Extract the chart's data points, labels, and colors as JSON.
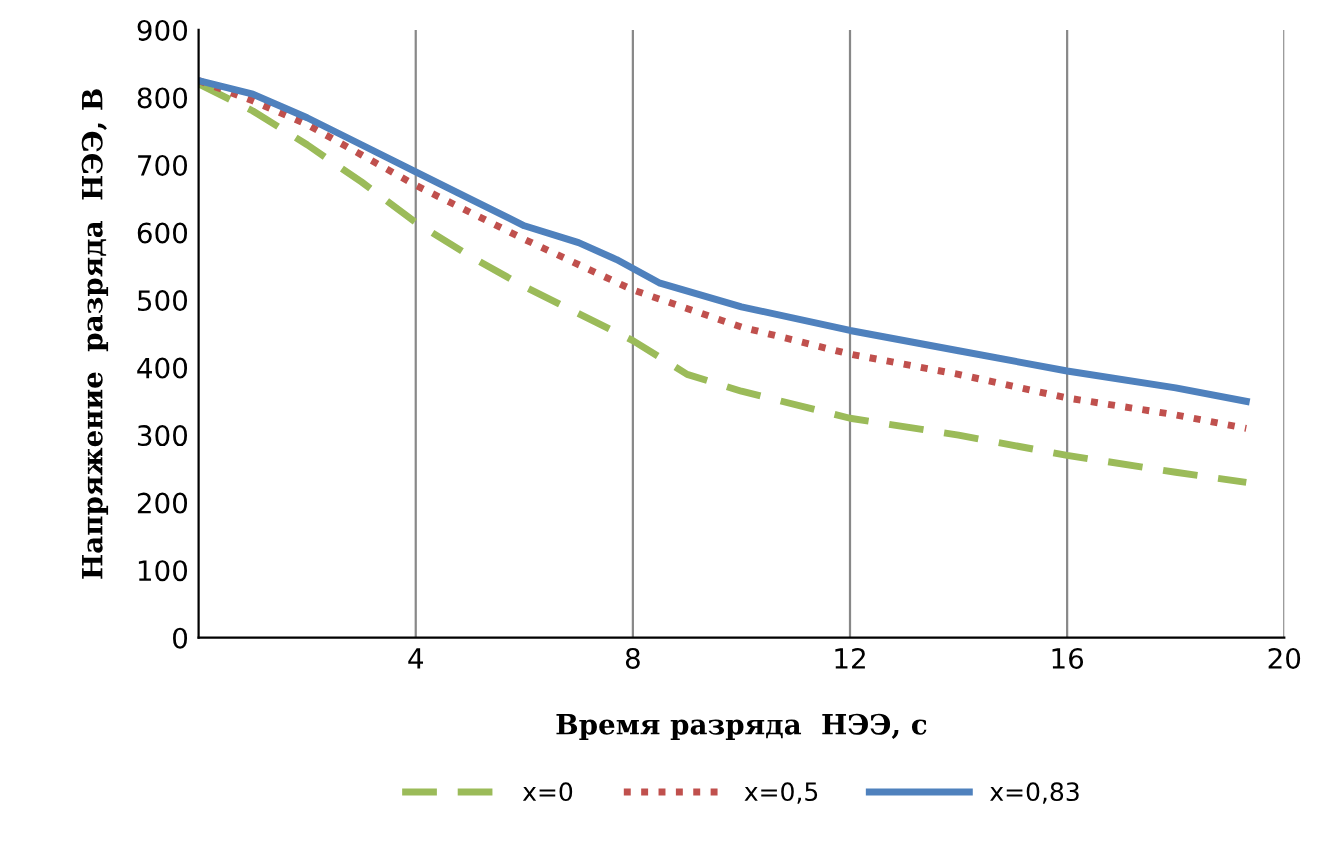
{
  "chart_data": {
    "type": "line",
    "xlabel": "Время разряда  НЭЭ, с",
    "ylabel": "Напряжение  разряда  НЭЭ, В",
    "xlim": [
      0,
      20
    ],
    "xticks": [
      4,
      8,
      12,
      16,
      20
    ],
    "ylim": [
      0,
      900
    ],
    "yticks": [
      0,
      100,
      200,
      300,
      400,
      500,
      600,
      700,
      800,
      900
    ],
    "grid": "x",
    "legend": "bottom",
    "marker": "none",
    "series": [
      {
        "name": "x=0",
        "color": "#9bbb59",
        "line_style": "dashed",
        "x": [
          0,
          1,
          2,
          3,
          4,
          5,
          6,
          7,
          8,
          9,
          10,
          12,
          14,
          16,
          18,
          19.3
        ],
        "values": [
          820,
          780,
          730,
          675,
          615,
          565,
          520,
          480,
          440,
          390,
          365,
          325,
          300,
          270,
          245,
          230
        ]
      },
      {
        "name": "x=0,5",
        "color": "#c0504d",
        "line_style": "dotted",
        "x": [
          0,
          1,
          2,
          3,
          4,
          6,
          8,
          10,
          12,
          14,
          16,
          18,
          19.3
        ],
        "values": [
          825,
          795,
          760,
          715,
          670,
          590,
          515,
          460,
          420,
          390,
          355,
          330,
          310
        ]
      },
      {
        "name": "x=0,83",
        "color": "#4f81bd",
        "line_style": "solid",
        "x": [
          0,
          1,
          2,
          3,
          4,
          5,
          6,
          7,
          7.7,
          8.5,
          10,
          12,
          14,
          16,
          18,
          19.3
        ],
        "values": [
          825,
          805,
          770,
          730,
          690,
          650,
          610,
          585,
          560,
          525,
          490,
          455,
          425,
          395,
          370,
          350
        ]
      }
    ]
  }
}
